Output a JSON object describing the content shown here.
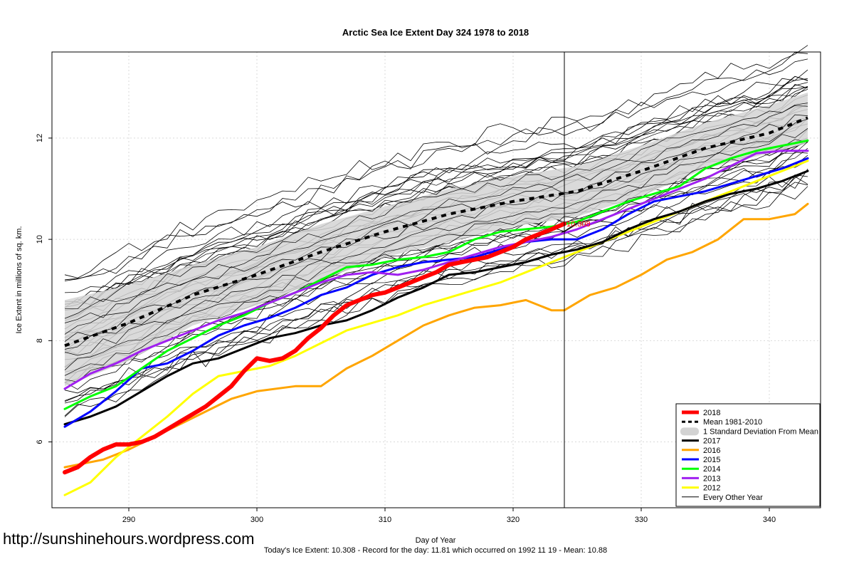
{
  "watermark": "http://sunshinehours.wordpress.com",
  "chart_data": {
    "type": "line",
    "title": "Arctic Sea Ice Extent Day 324 1978 to 2018",
    "xlabel": "Day of Year",
    "ylabel": "Ice Extent in millions of sq. km.",
    "footer": "Today's Ice Extent: 10.308  - Record for the day: 11.81 which occurred on 1992 11 19  - Mean: 10.88",
    "xlim": [
      284,
      344
    ],
    "ylim": [
      4.7,
      13.7
    ],
    "xticks": [
      290,
      300,
      310,
      320,
      330,
      340
    ],
    "yticks": [
      6,
      8,
      10,
      12
    ],
    "grid": true,
    "current_day": 324,
    "current_value_label": "10.308",
    "legend_position": "bottom-right",
    "legend": [
      {
        "label": "2018",
        "color": "#ff0000",
        "style": "thick"
      },
      {
        "label": "Mean 1981-2010",
        "color": "#000000",
        "style": "dashed"
      },
      {
        "label": "1 Standard Deviation From Mean",
        "color": "#d3d3d3",
        "style": "band"
      },
      {
        "label": "2017",
        "color": "#000000",
        "style": "line"
      },
      {
        "label": "2016",
        "color": "#ffa500",
        "style": "line"
      },
      {
        "label": "2015",
        "color": "#0000ff",
        "style": "line"
      },
      {
        "label": "2014",
        "color": "#00ff00",
        "style": "line"
      },
      {
        "label": "2013",
        "color": "#a020f0",
        "style": "line"
      },
      {
        "label": "2012",
        "color": "#ffff00",
        "style": "line"
      },
      {
        "label": "Every Other Year",
        "color": "#000000",
        "style": "thin"
      }
    ],
    "mean": {
      "x": [
        285,
        290,
        295,
        300,
        305,
        310,
        315,
        320,
        325,
        330,
        335,
        340,
        343
      ],
      "y": [
        7.9,
        8.35,
        8.9,
        9.3,
        9.75,
        10.15,
        10.5,
        10.75,
        10.95,
        11.35,
        11.8,
        12.1,
        12.4
      ]
    },
    "std_band": {
      "x": [
        285,
        290,
        295,
        300,
        305,
        310,
        315,
        320,
        325,
        330,
        335,
        340,
        343
      ],
      "lower": [
        7.1,
        7.6,
        8.3,
        8.7,
        9.2,
        9.65,
        9.95,
        10.25,
        10.45,
        10.85,
        11.4,
        11.7,
        11.9
      ],
      "upper": [
        8.8,
        9.1,
        9.5,
        9.85,
        10.3,
        10.65,
        11.0,
        11.25,
        11.45,
        11.85,
        12.3,
        12.65,
        12.9
      ]
    },
    "series": [
      {
        "name": "2016",
        "color": "#ffa500",
        "width": 3,
        "x": [
          285,
          288,
          290,
          292,
          294,
          296,
          298,
          300,
          303,
          305,
          307,
          309,
          311,
          313,
          315,
          317,
          319,
          321,
          323,
          324,
          326,
          328,
          330,
          332,
          334,
          336,
          338,
          340,
          342,
          343
        ],
        "y": [
          5.5,
          5.65,
          5.85,
          6.1,
          6.35,
          6.6,
          6.85,
          7.0,
          7.1,
          7.1,
          7.45,
          7.7,
          8.0,
          8.3,
          8.5,
          8.65,
          8.7,
          8.8,
          8.6,
          8.6,
          8.9,
          9.05,
          9.3,
          9.6,
          9.75,
          10.0,
          10.4,
          10.4,
          10.5,
          10.7
        ]
      },
      {
        "name": "2012",
        "color": "#ffff00",
        "width": 3,
        "x": [
          285,
          287,
          289,
          291,
          293,
          295,
          297,
          299,
          301,
          303,
          305,
          307,
          309,
          311,
          313,
          315,
          317,
          319,
          321,
          323,
          325,
          327,
          329,
          331,
          333,
          335,
          337,
          339,
          341,
          343
        ],
        "y": [
          4.95,
          5.2,
          5.7,
          6.1,
          6.5,
          6.95,
          7.3,
          7.4,
          7.5,
          7.7,
          7.95,
          8.2,
          8.35,
          8.5,
          8.7,
          8.85,
          9.0,
          9.15,
          9.35,
          9.55,
          9.75,
          9.95,
          10.15,
          10.35,
          10.55,
          10.75,
          10.95,
          11.15,
          11.35,
          11.55
        ]
      },
      {
        "name": "2017",
        "color": "#000000",
        "width": 3,
        "x": [
          285,
          287,
          289,
          291,
          293,
          295,
          297,
          299,
          301,
          303,
          305,
          307,
          309,
          311,
          313,
          315,
          317,
          319,
          321,
          323,
          325,
          327,
          329,
          331,
          333,
          335,
          337,
          339,
          341,
          343
        ],
        "y": [
          6.35,
          6.5,
          6.7,
          7.0,
          7.3,
          7.55,
          7.65,
          7.85,
          8.05,
          8.15,
          8.3,
          8.4,
          8.6,
          8.85,
          9.05,
          9.3,
          9.35,
          9.45,
          9.55,
          9.7,
          9.8,
          9.95,
          10.2,
          10.4,
          10.55,
          10.75,
          10.9,
          11.0,
          11.15,
          11.35
        ]
      },
      {
        "name": "2015",
        "color": "#0000ff",
        "width": 3,
        "x": [
          285,
          287,
          289,
          291,
          293,
          295,
          297,
          299,
          301,
          303,
          305,
          307,
          309,
          311,
          313,
          315,
          317,
          319,
          321,
          323,
          325,
          327,
          329,
          331,
          333,
          335,
          337,
          339,
          341,
          343
        ],
        "y": [
          6.3,
          6.6,
          7.0,
          7.45,
          7.55,
          7.8,
          8.1,
          8.3,
          8.45,
          8.65,
          8.9,
          9.05,
          9.3,
          9.45,
          9.55,
          9.6,
          9.65,
          9.8,
          9.95,
          10.0,
          10.0,
          10.2,
          10.5,
          10.75,
          10.85,
          10.95,
          11.1,
          11.25,
          11.4,
          11.6
        ]
      },
      {
        "name": "2014",
        "color": "#00ff00",
        "width": 3,
        "x": [
          285,
          287,
          289,
          291,
          293,
          295,
          297,
          299,
          301,
          303,
          305,
          307,
          309,
          311,
          313,
          315,
          317,
          319,
          321,
          323,
          325,
          327,
          329,
          331,
          333,
          335,
          337,
          339,
          341,
          343
        ],
        "y": [
          6.65,
          6.9,
          7.1,
          7.45,
          7.8,
          8.05,
          8.3,
          8.5,
          8.75,
          8.95,
          9.2,
          9.45,
          9.5,
          9.6,
          9.65,
          9.75,
          10.0,
          10.15,
          10.2,
          10.25,
          10.35,
          10.55,
          10.75,
          10.9,
          11.05,
          11.4,
          11.6,
          11.75,
          11.85,
          11.95
        ]
      },
      {
        "name": "2013",
        "color": "#a020f0",
        "width": 3,
        "x": [
          285,
          287,
          289,
          291,
          293,
          295,
          297,
          299,
          301,
          303,
          305,
          307,
          309,
          311,
          313,
          315,
          317,
          319,
          321,
          323,
          325,
          327,
          329,
          331,
          333,
          335,
          337,
          339,
          341,
          343
        ],
        "y": [
          7.05,
          7.35,
          7.55,
          7.8,
          8.0,
          8.2,
          8.4,
          8.55,
          8.75,
          8.95,
          9.15,
          9.3,
          9.35,
          9.3,
          9.4,
          9.55,
          9.7,
          9.85,
          9.95,
          10.05,
          10.2,
          10.4,
          10.6,
          10.8,
          11.0,
          11.2,
          11.45,
          11.7,
          11.75,
          11.75
        ]
      },
      {
        "name": "2018",
        "color": "#ff0000",
        "width": 6,
        "x": [
          285,
          286,
          287,
          288,
          289,
          290,
          291,
          292,
          293,
          294,
          295,
          296,
          297,
          298,
          299,
          300,
          301,
          302,
          303,
          304,
          305,
          306,
          307,
          308,
          309,
          310,
          311,
          312,
          313,
          314,
          315,
          316,
          317,
          318,
          319,
          320,
          321,
          322,
          323,
          324
        ],
        "y": [
          5.4,
          5.5,
          5.7,
          5.85,
          5.95,
          5.95,
          6.0,
          6.1,
          6.25,
          6.4,
          6.55,
          6.7,
          6.9,
          7.1,
          7.4,
          7.65,
          7.6,
          7.65,
          7.8,
          8.05,
          8.25,
          8.5,
          8.7,
          8.8,
          8.9,
          8.95,
          9.05,
          9.15,
          9.25,
          9.35,
          9.5,
          9.55,
          9.6,
          9.65,
          9.75,
          9.85,
          10.0,
          10.1,
          10.2,
          10.308
        ]
      }
    ]
  }
}
